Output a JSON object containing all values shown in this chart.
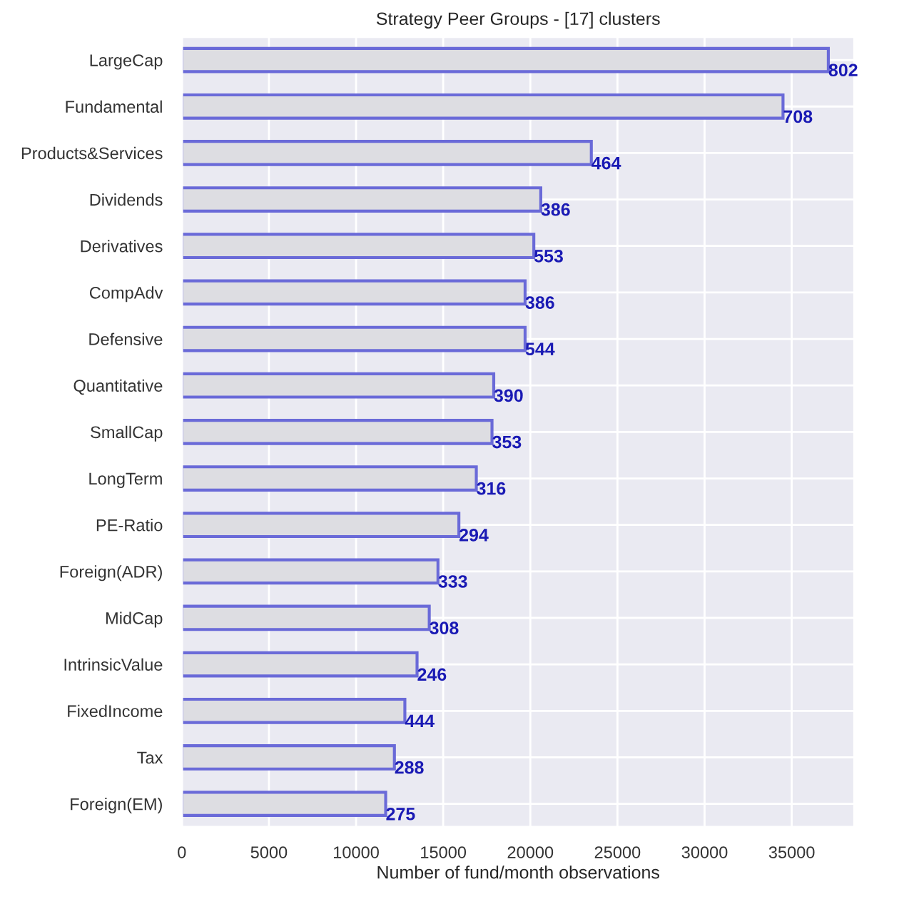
{
  "chart_data": {
    "type": "bar",
    "orientation": "horizontal",
    "title": "Strategy Peer Groups - [17] clusters",
    "xlabel": "Number of fund/month observations",
    "categories": [
      "LargeCap",
      "Fundamental",
      "Products&Services",
      "Dividends",
      "Derivatives",
      "CompAdv",
      "Defensive",
      "Quantitative",
      "SmallCap",
      "LongTerm",
      "PE-Ratio",
      "Foreign(ADR)",
      "MidCap",
      "IntrinsicValue",
      "FixedIncome",
      "Tax",
      "Foreign(EM)"
    ],
    "series": [
      {
        "color": "#dddde2",
        "values": [
          37100,
          34500,
          23500,
          20600,
          20200,
          19700,
          19700,
          17900,
          17800,
          16900,
          15900,
          14700,
          14200,
          13500,
          12800,
          12200,
          11700
        ]
      }
    ],
    "annotations": [
      {
        "text": "802",
        "x": 37100,
        "y": "LargeCap"
      },
      {
        "text": "708",
        "x": 34500,
        "y": "Fundamental"
      },
      {
        "text": "464",
        "x": 23500,
        "y": "Products&Services"
      },
      {
        "text": "386",
        "x": 20600,
        "y": "Dividends"
      },
      {
        "text": "553",
        "x": 20200,
        "y": "Derivatives"
      },
      {
        "text": "386",
        "x": 19700,
        "y": "CompAdv"
      },
      {
        "text": "544",
        "x": 19700,
        "y": "Defensive"
      },
      {
        "text": "390",
        "x": 17900,
        "y": "Quantitative"
      },
      {
        "text": "353",
        "x": 17800,
        "y": "SmallCap"
      },
      {
        "text": "316",
        "x": 16900,
        "y": "LongTerm"
      },
      {
        "text": "294",
        "x": 15900,
        "y": "PE-Ratio"
      },
      {
        "text": "333",
        "x": 14700,
        "y": "Foreign(ADR)"
      },
      {
        "text": "308",
        "x": 14200,
        "y": "MidCap"
      },
      {
        "text": "246",
        "x": 13500,
        "y": "IntrinsicValue"
      },
      {
        "text": "444",
        "x": 12800,
        "y": "FixedIncome"
      },
      {
        "text": "288",
        "x": 12200,
        "y": "Tax"
      },
      {
        "text": "275",
        "x": 11700,
        "y": "Foreign(EM)"
      }
    ],
    "xlim": [
      0,
      38600
    ],
    "xticks": [
      0,
      5000,
      10000,
      15000,
      20000,
      25000,
      30000,
      35000
    ],
    "grid": true,
    "legend": false
  }
}
